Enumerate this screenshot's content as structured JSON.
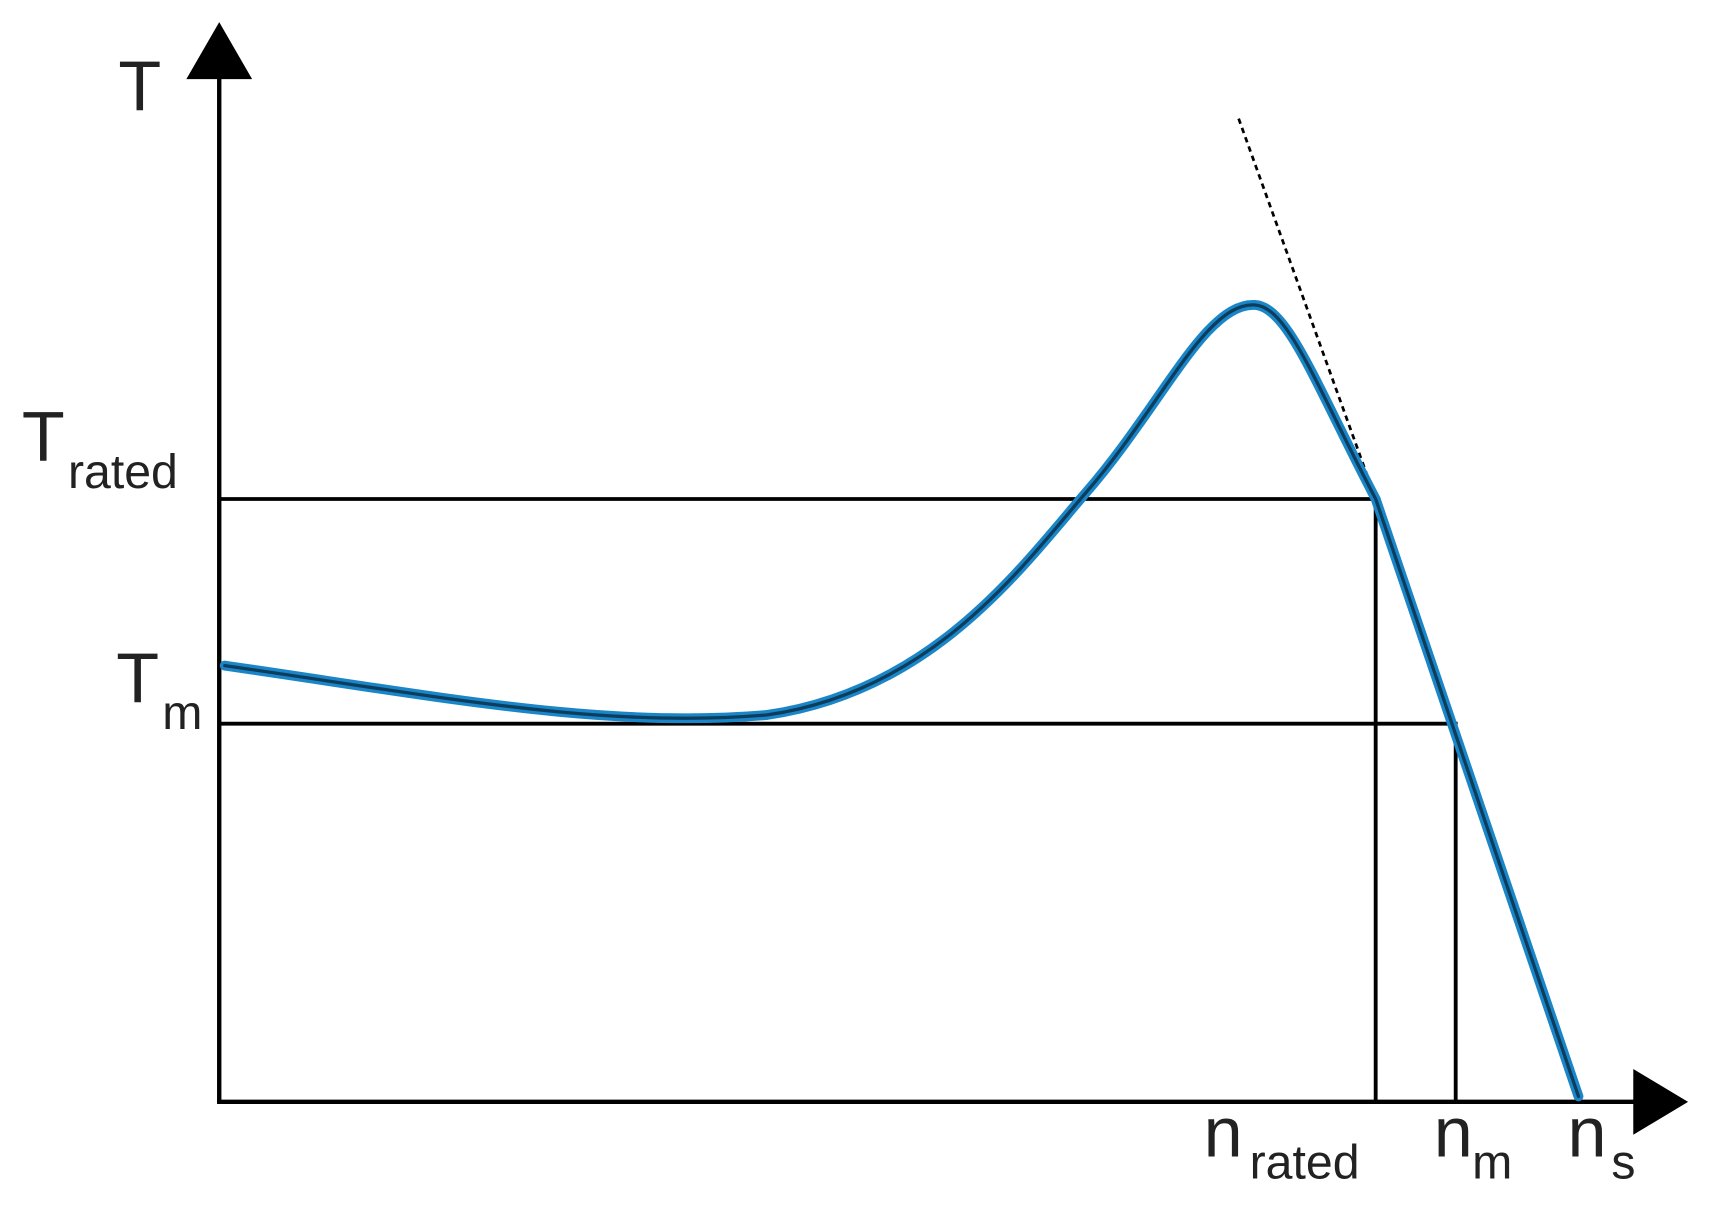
{
  "y_axis": {
    "label": "T"
  },
  "torque_levels": [
    {
      "symbol": "T",
      "subscript": "rated"
    },
    {
      "symbol": "T",
      "subscript": "m"
    }
  ],
  "speeds": [
    {
      "symbol": "n",
      "subscript": "rated"
    },
    {
      "symbol": "n",
      "subscript": "m"
    },
    {
      "symbol": "n",
      "subscript": "s"
    }
  ]
}
